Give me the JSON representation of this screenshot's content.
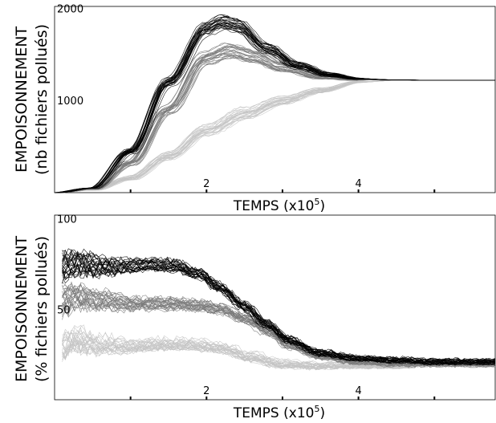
{
  "chart_data": [
    {
      "type": "line",
      "panel": "top",
      "ylabel_line1": "EMPOISONNEMENT",
      "ylabel_line2": "(nb fichiers pollués)",
      "xlabel": "TEMPS (x10",
      "xlabel_exp": "5",
      "xlabel_close": ")",
      "xlim": [
        0,
        5.8
      ],
      "ylim": [
        0,
        2020
      ],
      "xticks": [
        1,
        2,
        3,
        4,
        5
      ],
      "xtick_labels": [
        {
          "x": 2,
          "label": "2"
        },
        {
          "x": 4,
          "label": "4"
        }
      ],
      "ytick_labels": [
        {
          "y": 1000,
          "label": "1000"
        },
        {
          "y": 2000,
          "label": "2000"
        }
      ],
      "colors": {
        "black": "#000000",
        "gray": "#7a7a7a",
        "lightgray": "#c4c4c4"
      },
      "series": [
        {
          "color": "lightgray",
          "x": [
            0,
            0.5,
            1.0,
            1.5,
            2.0,
            2.5,
            3.0,
            3.5,
            4.0,
            4.5,
            5.0,
            5.8
          ],
          "values": [
            0,
            30,
            160,
            400,
            680,
            860,
            1000,
            1110,
            1200,
            1220,
            1220,
            1220
          ]
        },
        {
          "color": "gray",
          "x": [
            0,
            0.5,
            1.0,
            1.5,
            2.0,
            2.3,
            2.6,
            3.0,
            3.5,
            4.0,
            4.5,
            5.0,
            5.8
          ],
          "values": [
            0,
            40,
            320,
            900,
            1460,
            1540,
            1480,
            1360,
            1260,
            1225,
            1220,
            1220,
            1220
          ]
        },
        {
          "color": "black",
          "x": [
            0,
            0.5,
            1.0,
            1.5,
            2.0,
            2.2,
            2.4,
            2.8,
            3.2,
            3.6,
            4.0,
            4.5,
            5.0,
            5.8
          ],
          "values": [
            0,
            50,
            450,
            1200,
            1780,
            1850,
            1810,
            1560,
            1380,
            1280,
            1235,
            1222,
            1220,
            1220
          ]
        }
      ]
    },
    {
      "type": "line",
      "panel": "bottom",
      "ylabel_line1": "EMPOISONNEMENT",
      "ylabel_line2": "(% fichiers pollués)",
      "xlabel": "TEMPS (x10",
      "xlabel_exp": "5",
      "xlabel_close": ")",
      "xlim": [
        0,
        5.8
      ],
      "ylim": [
        0,
        102
      ],
      "xticks": [
        1,
        2,
        3,
        4,
        5
      ],
      "xtick_labels": [
        {
          "x": 2,
          "label": "2"
        },
        {
          "x": 4,
          "label": "4"
        }
      ],
      "ytick_labels": [
        {
          "y": 50,
          "label": "50"
        },
        {
          "y": 100,
          "label": "100"
        }
      ],
      "colors": {
        "black": "#000000",
        "gray": "#7a7a7a",
        "lightgray": "#c4c4c4"
      },
      "series": [
        {
          "color": "lightgray",
          "x": [
            0.1,
            0.3,
            0.6,
            1.0,
            1.3,
            1.5,
            1.8,
            2.2,
            2.6,
            3.0,
            3.5,
            4.0,
            4.5,
            5.0,
            5.8
          ],
          "values": [
            30,
            34,
            31,
            30,
            31,
            31,
            31,
            29,
            24,
            20,
            19,
            19,
            19,
            20,
            20
          ]
        },
        {
          "color": "gray",
          "x": [
            0.1,
            0.3,
            0.6,
            1.0,
            1.3,
            1.6,
            1.9,
            2.2,
            2.5,
            2.8,
            3.1,
            3.5,
            4.0,
            4.5,
            5.0,
            5.8
          ],
          "values": [
            55,
            57,
            55,
            53,
            53,
            53,
            52,
            50,
            45,
            38,
            30,
            24,
            21,
            20,
            20,
            20
          ]
        },
        {
          "color": "black",
          "x": [
            0.1,
            0.3,
            0.6,
            1.0,
            1.3,
            1.6,
            1.9,
            2.2,
            2.5,
            2.8,
            3.1,
            3.5,
            4.0,
            4.5,
            5.0,
            5.8
          ],
          "values": [
            74,
            76,
            74,
            74,
            75,
            74,
            70,
            62,
            52,
            42,
            33,
            26,
            23,
            22,
            21,
            21
          ]
        }
      ]
    }
  ]
}
